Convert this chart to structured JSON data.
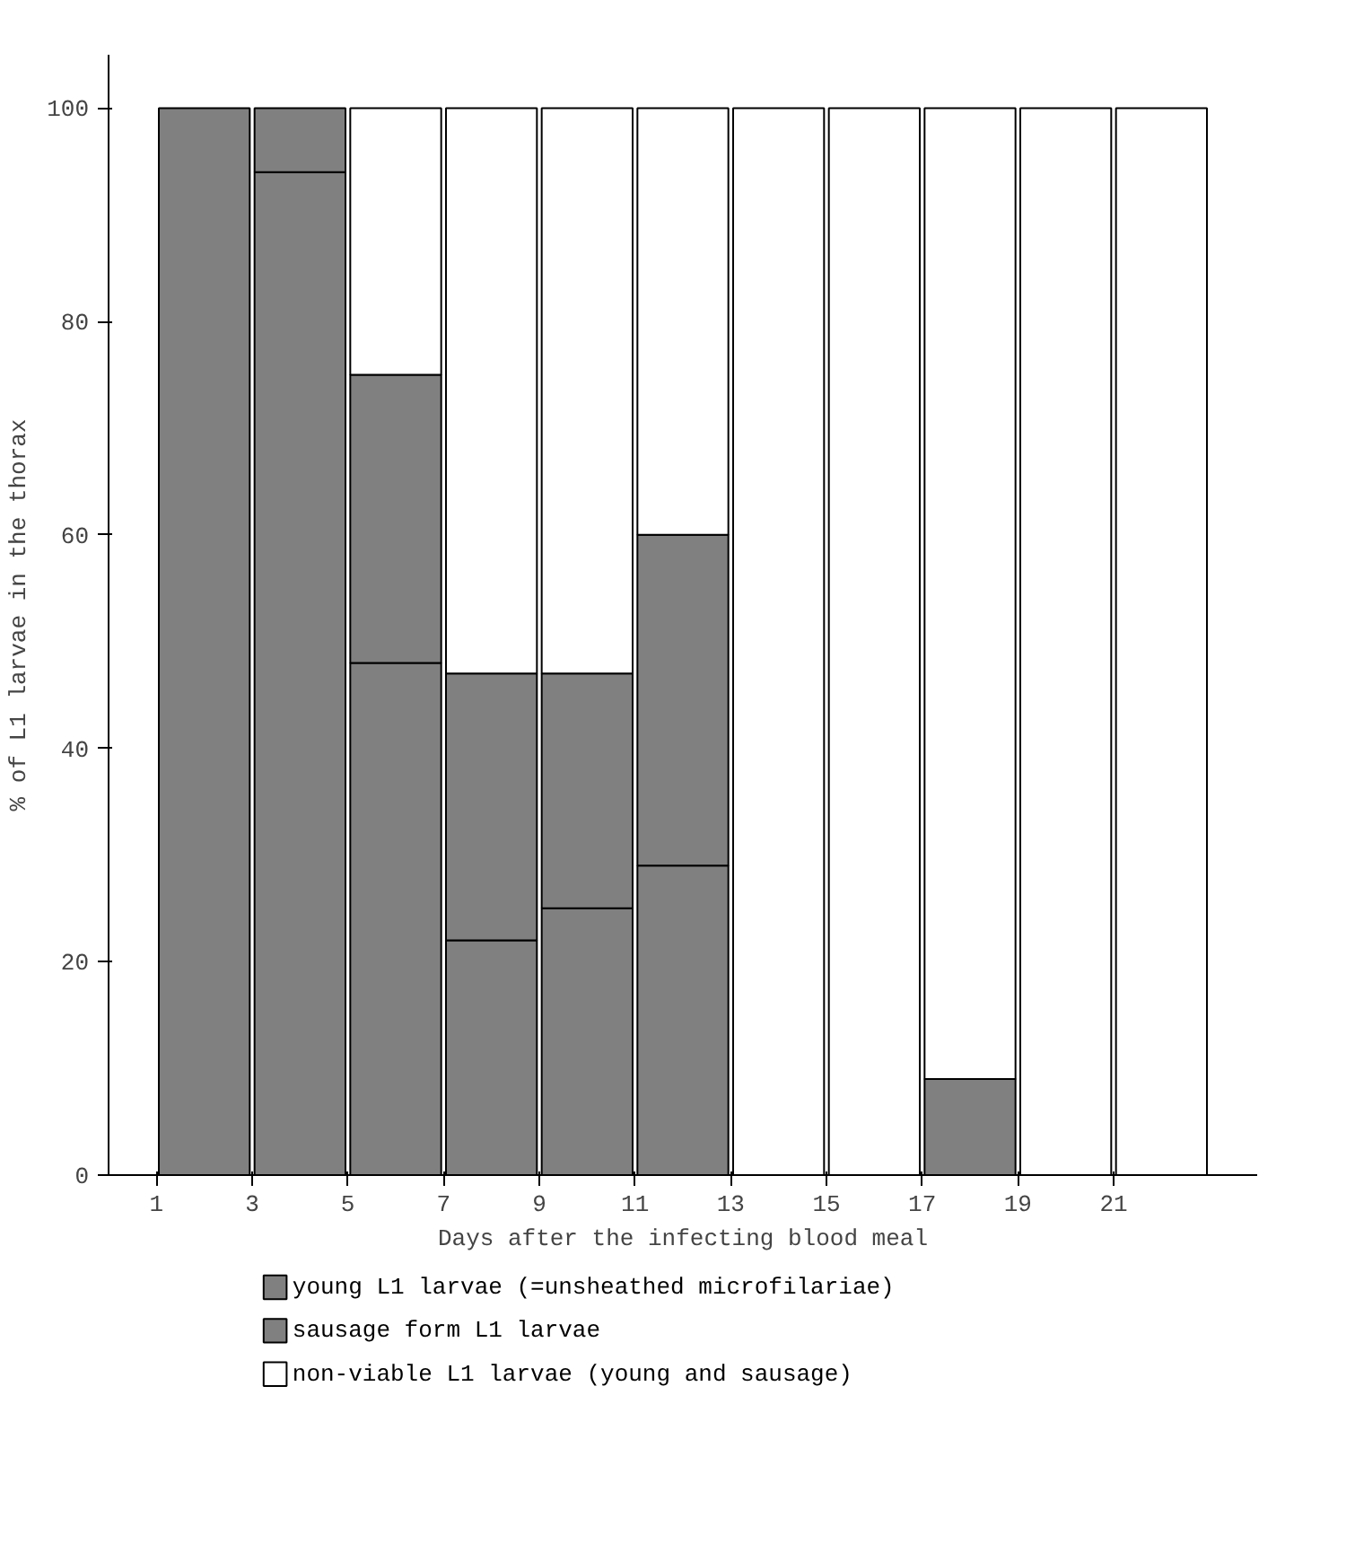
{
  "chart_data": {
    "type": "bar",
    "stacked": true,
    "xlabel": "Days after the infecting blood meal",
    "ylabel": "% of L1 larvae in the thorax",
    "x": [
      2,
      4,
      6,
      8,
      10,
      12,
      14,
      16,
      18,
      20,
      22
    ],
    "xlim": [
      0,
      24
    ],
    "xticks": [
      1,
      3,
      5,
      7,
      9,
      11,
      13,
      15,
      17,
      19,
      21
    ],
    "ylim": [
      0,
      105
    ],
    "yticks": [
      0,
      20,
      40,
      60,
      80,
      100
    ],
    "series": [
      {
        "name": "young L1 larvae (=unsheathed microfilariae)",
        "color": "#808080",
        "values": [
          100,
          94,
          48,
          22,
          25,
          29,
          0,
          0,
          0,
          0,
          0
        ]
      },
      {
        "name": "sausage form L1 larvae",
        "color": "#808080",
        "values": [
          0,
          6,
          27,
          25,
          22,
          31,
          0,
          0,
          9,
          0,
          0
        ]
      },
      {
        "name": "non-viable L1 larvae (young and sausage)",
        "color": "#ffffff",
        "values": [
          0,
          0,
          25,
          53,
          53,
          40,
          100,
          100,
          91,
          100,
          100
        ]
      }
    ],
    "grid": false,
    "legend": "bottom"
  }
}
